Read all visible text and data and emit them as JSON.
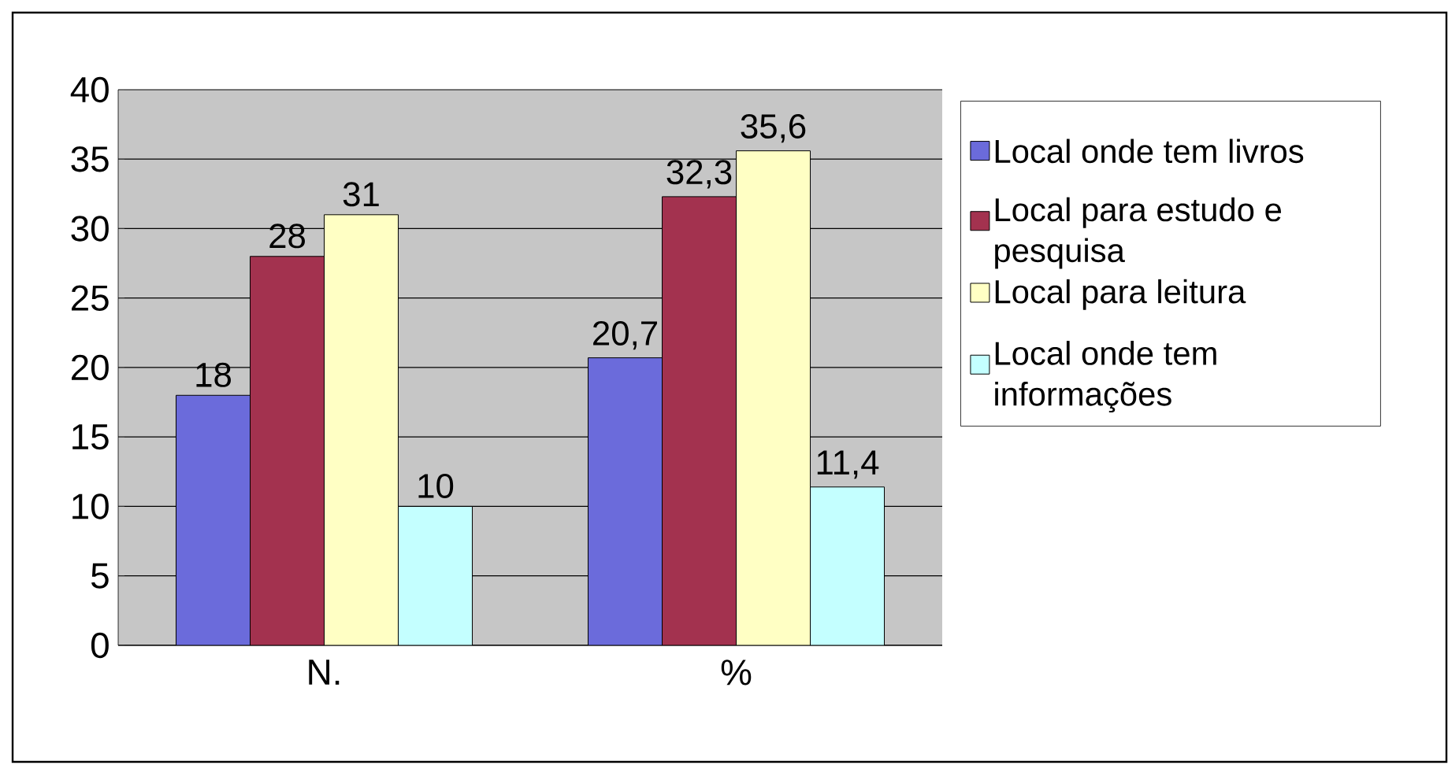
{
  "chart_data": {
    "type": "bar",
    "categories": [
      "N.",
      "%"
    ],
    "series": [
      {
        "name": "Local onde tem livros",
        "color": "#6b6bdb",
        "values": [
          18,
          20.7
        ],
        "value_labels": [
          "18",
          "20,7"
        ]
      },
      {
        "name": "Local para estudo e pesquisa",
        "color": "#a3324f",
        "values": [
          28,
          32.3
        ],
        "value_labels": [
          "28",
          "32,3"
        ]
      },
      {
        "name": "Local para leitura",
        "color": "#ffffc4",
        "values": [
          31,
          35.6
        ],
        "value_labels": [
          "31",
          "35,6"
        ]
      },
      {
        "name": "Local onde tem informações",
        "color": "#c4ffff",
        "values": [
          10,
          11.4
        ],
        "value_labels": [
          "10",
          "11,4"
        ]
      }
    ],
    "ylim": [
      0,
      40
    ],
    "yticks": [
      0,
      5,
      10,
      15,
      20,
      25,
      30,
      35,
      40
    ],
    "grid": "y",
    "legend": "right"
  }
}
